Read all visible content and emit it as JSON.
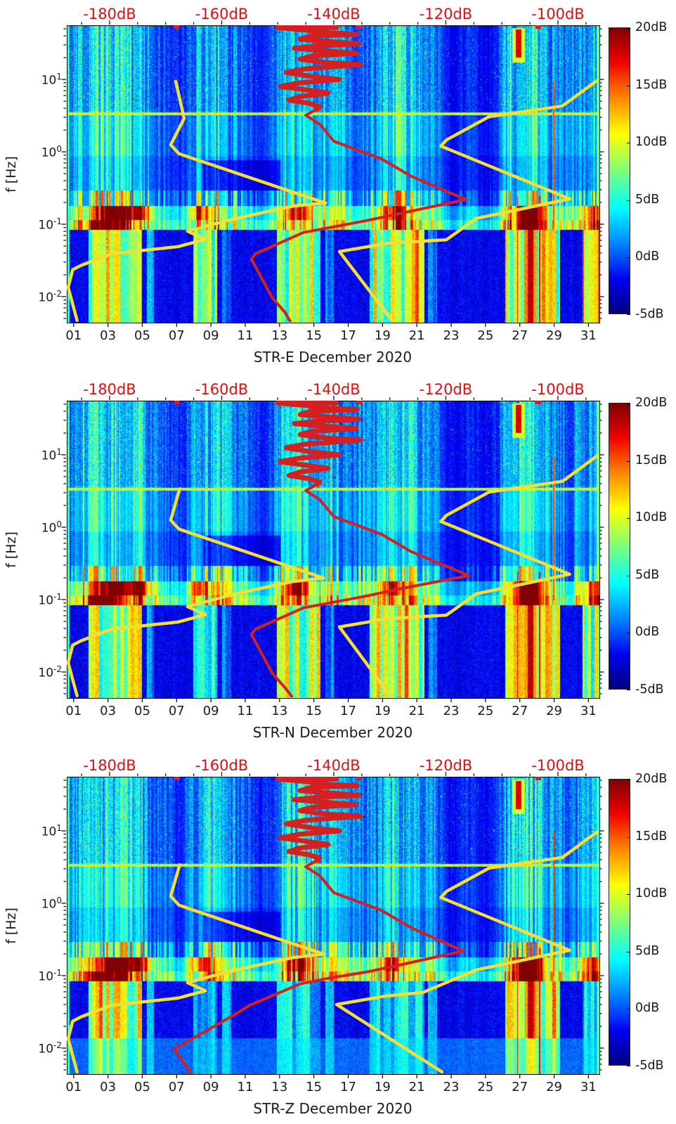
{
  "figure": {
    "background": "#ffffff",
    "description": "Three stacked day-vs-frequency spectrograms (jet colormap) for station channels STR-E, STR-N, STR-Z, December 2020, each with a dB colorbar and overlaid yellow noise-model curves and a red PSD curve referenced to the red top dB axis."
  },
  "colors": {
    "curve_yellow": "#f7de35",
    "curve_red": "#d42020",
    "top_axis_red": "#dd1111",
    "text": "#1b1b1b",
    "axis": "#000000"
  },
  "chart_data": {
    "type": "heatmap",
    "colormap": "jet",
    "colorbar": {
      "tick_labels": [
        "20dB",
        "15dB",
        "10dB",
        "5dB",
        "0dB",
        "-5dB"
      ],
      "tick_values": [
        20,
        15,
        10,
        5,
        0,
        -5
      ],
      "min": -5,
      "max": 20
    },
    "x_bottom_axis": {
      "unit": "day of month",
      "tick_labels": [
        "01",
        "03",
        "05",
        "07",
        "09",
        "11",
        "13",
        "15",
        "17",
        "19",
        "21",
        "23",
        "25",
        "27",
        "29",
        "31"
      ],
      "tick_days": [
        1,
        3,
        5,
        7,
        9,
        11,
        13,
        15,
        17,
        19,
        21,
        23,
        25,
        27,
        29,
        31
      ],
      "range_days": [
        0.8,
        31.8
      ]
    },
    "x_top_axis": {
      "unit": "dB",
      "tick_labels": [
        "-180dB",
        "-160dB",
        "-140dB",
        "-120dB",
        "-100dB"
      ],
      "tick_values": [
        -180,
        -160,
        -140,
        -120,
        -100
      ],
      "minor_step_db": 5,
      "range_db": [
        -187.7,
        -92.7
      ],
      "color": "#dd1111"
    },
    "y_axis": {
      "label": "f [Hz]",
      "scale": "log",
      "tick_labels": [
        "10¹",
        "10⁰",
        "10⁻¹",
        "10⁻²"
      ],
      "ticks": [
        {
          "base": "10",
          "exp": "1",
          "value": 10
        },
        {
          "base": "10",
          "exp": "0",
          "value": 1
        },
        {
          "base": "10",
          "exp": "-1",
          "value": 0.1
        },
        {
          "base": "10",
          "exp": "-2",
          "value": 0.01
        }
      ],
      "range_hz": [
        0.0045,
        56
      ]
    },
    "scribble_points_db_hz": [
      [
        -146,
        52
      ],
      [
        -139.5,
        52
      ],
      [
        -150,
        52
      ],
      [
        -145,
        48
      ],
      [
        -141,
        44
      ],
      [
        -135.8,
        42
      ],
      [
        -144,
        40
      ],
      [
        -146,
        36
      ],
      [
        -140,
        33
      ],
      [
        -135.5,
        31
      ],
      [
        -143,
        29
      ],
      [
        -147,
        27
      ],
      [
        -142,
        25
      ],
      [
        -136,
        23
      ],
      [
        -144,
        21
      ],
      [
        -146,
        19
      ],
      [
        -141,
        17
      ],
      [
        -135.2,
        16
      ],
      [
        -145,
        14
      ],
      [
        -148.5,
        12.5
      ],
      [
        -144,
        11
      ],
      [
        -139,
        10
      ],
      [
        -146,
        9
      ],
      [
        -149.5,
        8
      ],
      [
        -145,
        7.2
      ],
      [
        -141,
        6.5
      ],
      [
        -146,
        5.8
      ],
      [
        -148,
        5.2
      ],
      [
        -144.5,
        4.7
      ],
      [
        -142.5,
        4.2
      ],
      [
        -143,
        3.9
      ]
    ],
    "top_edge_markers_db": [
      -168,
      -135.5,
      -103.5
    ],
    "panels": [
      {
        "title": "STR-E December 2020",
        "channel": "STR-E",
        "seed": 11,
        "noise_model_low_db_hz": [
          [
            -168.2,
            9.4
          ],
          [
            -166.7,
            2.9
          ],
          [
            -169.1,
            1.25
          ],
          [
            -167.6,
            0.94
          ],
          [
            -141.5,
            0.196
          ],
          [
            -147.1,
            0.179
          ],
          [
            -154.7,
            0.134
          ],
          [
            -160.1,
            0.107
          ],
          [
            -166.1,
            0.08
          ],
          [
            -162.9,
            0.062
          ],
          [
            -167.8,
            0.049
          ],
          [
            -179.7,
            0.039
          ],
          [
            -185.1,
            0.027
          ],
          [
            -186.6,
            0.0235
          ],
          [
            -187.4,
            0.0134
          ],
          [
            -185.8,
            0.0047
          ]
        ],
        "noise_model_high_db_hz": [
          [
            -92.9,
            9.8
          ],
          [
            -99.2,
            4.3
          ],
          [
            -112.3,
            3.06
          ],
          [
            -119.9,
            1.46
          ],
          [
            -120.9,
            1.2
          ],
          [
            -97.9,
            0.224
          ],
          [
            -114.6,
            0.12
          ],
          [
            -119.9,
            0.061
          ],
          [
            -130,
            0.055
          ],
          [
            -139,
            0.042
          ],
          [
            -129.6,
            0.0047
          ]
        ],
        "psd_curve_db_hz": [
          [
            -143,
            3.9
          ],
          [
            -145,
            3.2
          ],
          [
            -142.5,
            2.4
          ],
          [
            -140,
            1.4
          ],
          [
            -131.5,
            0.8
          ],
          [
            -126.2,
            0.46
          ],
          [
            -116.4,
            0.219
          ],
          [
            -127.8,
            0.143
          ],
          [
            -133.7,
            0.114
          ],
          [
            -140,
            0.092
          ],
          [
            -145.4,
            0.077
          ],
          [
            -154,
            0.039
          ],
          [
            -154.7,
            0.033
          ],
          [
            -151,
            0.0097
          ],
          [
            -148.8,
            0.0062
          ],
          [
            -147.8,
            0.0046
          ]
        ]
      },
      {
        "title": "STR-N December 2020",
        "channel": "STR-N",
        "seed": 22,
        "noise_model_low_db_hz": [
          [
            -167.5,
            3.4
          ],
          [
            -169.1,
            1.25
          ],
          [
            -167.6,
            0.94
          ],
          [
            -141.8,
            0.198
          ],
          [
            -147.1,
            0.179
          ],
          [
            -154.7,
            0.134
          ],
          [
            -160.1,
            0.107
          ],
          [
            -166.1,
            0.08
          ],
          [
            -162.9,
            0.062
          ],
          [
            -167.8,
            0.049
          ],
          [
            -179.7,
            0.039
          ],
          [
            -185.1,
            0.027
          ],
          [
            -186.6,
            0.0235
          ],
          [
            -187.4,
            0.0134
          ],
          [
            -185.8,
            0.0047
          ]
        ],
        "noise_model_high_db_hz": [
          [
            -92.9,
            9.8
          ],
          [
            -99.2,
            4.3
          ],
          [
            -112.3,
            3.06
          ],
          [
            -119.9,
            1.46
          ],
          [
            -120.9,
            1.2
          ],
          [
            -97.9,
            0.224
          ],
          [
            -114.6,
            0.12
          ],
          [
            -119.9,
            0.061
          ],
          [
            -130,
            0.055
          ],
          [
            -139,
            0.042
          ],
          [
            -129.9,
            0.0047
          ]
        ],
        "psd_curve_db_hz": [
          [
            -143,
            3.9
          ],
          [
            -145,
            3.2
          ],
          [
            -142.5,
            2.4
          ],
          [
            -140,
            1.4
          ],
          [
            -131.5,
            0.8
          ],
          [
            -126.2,
            0.46
          ],
          [
            -115.9,
            0.215
          ],
          [
            -127.8,
            0.143
          ],
          [
            -133.7,
            0.114
          ],
          [
            -140,
            0.092
          ],
          [
            -145.4,
            0.077
          ],
          [
            -154,
            0.039
          ],
          [
            -154.7,
            0.033
          ],
          [
            -151,
            0.0097
          ],
          [
            -148.8,
            0.0062
          ],
          [
            -147.5,
            0.0046
          ]
        ]
      },
      {
        "title": "STR-Z December 2020",
        "channel": "STR-Z",
        "seed": 33,
        "noise_model_low_db_hz": [
          [
            -167.5,
            3.4
          ],
          [
            -169.1,
            1.25
          ],
          [
            -167.6,
            0.94
          ],
          [
            -141.8,
            0.198
          ],
          [
            -147.1,
            0.179
          ],
          [
            -154.7,
            0.134
          ],
          [
            -160.1,
            0.107
          ],
          [
            -166.1,
            0.08
          ],
          [
            -162.9,
            0.062
          ],
          [
            -167.8,
            0.049
          ],
          [
            -179.7,
            0.039
          ],
          [
            -185.1,
            0.027
          ],
          [
            -186.6,
            0.0235
          ],
          [
            -187.4,
            0.0134
          ],
          [
            -185.8,
            0.0047
          ]
        ],
        "noise_model_high_db_hz": [
          [
            -92.9,
            9.8
          ],
          [
            -99.2,
            4.3
          ],
          [
            -112.3,
            3.06
          ],
          [
            -119.9,
            1.46
          ],
          [
            -120.9,
            1.2
          ],
          [
            -97.9,
            0.224
          ],
          [
            -114.6,
            0.12
          ],
          [
            -124,
            0.059
          ],
          [
            -131,
            0.052
          ],
          [
            -139.5,
            0.04
          ],
          [
            -120.7,
            0.0047
          ]
        ],
        "psd_curve_db_hz": [
          [
            -143,
            3.9
          ],
          [
            -145,
            3.2
          ],
          [
            -142.5,
            2.4
          ],
          [
            -140,
            1.4
          ],
          [
            -131.5,
            0.8
          ],
          [
            -126.2,
            0.46
          ],
          [
            -116.9,
            0.219
          ],
          [
            -127.8,
            0.143
          ],
          [
            -133.7,
            0.114
          ],
          [
            -141,
            0.092
          ],
          [
            -146,
            0.077
          ],
          [
            -155,
            0.039
          ],
          [
            -158,
            0.028
          ],
          [
            -168.5,
            0.0097
          ],
          [
            -165.5,
            0.0046
          ]
        ]
      }
    ]
  }
}
